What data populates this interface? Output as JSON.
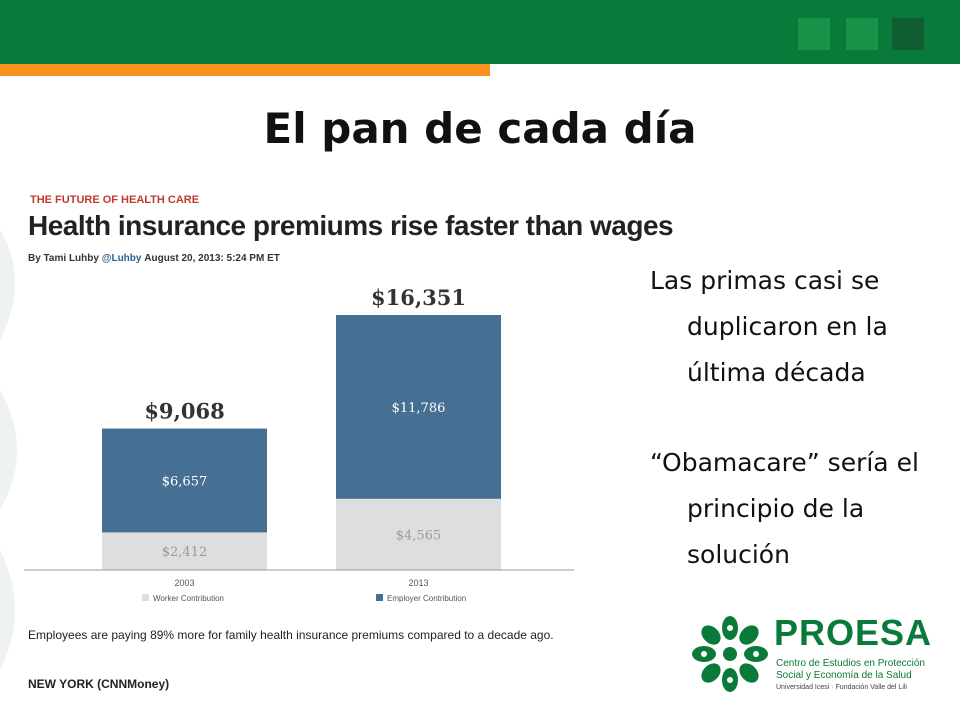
{
  "slide": {
    "title": "El pan de cada día",
    "colors": {
      "primary_green": "#0a7a3a",
      "accent_orange": "#f7931e"
    }
  },
  "article": {
    "kicker": "THE FUTURE OF HEALTH CARE",
    "headline": "Health insurance premiums rise faster than wages",
    "byline": {
      "by": "By Tami Luhby",
      "handle": "@Luhby",
      "date": "August 20, 2013: 5:24 PM ET"
    },
    "caption": "Employees are paying 89% more for family health insurance premiums compared to a decade ago.",
    "dateline": "NEW YORK (CNNMoney)"
  },
  "chart_data": {
    "type": "bar",
    "stacked": true,
    "categories": [
      "2003",
      "2013"
    ],
    "totals": [
      "$9,068",
      "$16,351"
    ],
    "series": [
      {
        "name": "Worker Contribution",
        "values": [
          2412,
          4565
        ],
        "labels": [
          "$2,412",
          "$4,565"
        ],
        "color": "#dedede"
      },
      {
        "name": "Employer Contribution",
        "values": [
          6657,
          11786
        ],
        "labels": [
          "$6,657",
          "$11,786"
        ],
        "color": "#456f93"
      }
    ],
    "ylim": [
      0,
      16351
    ],
    "grid": false,
    "legend": "bottom"
  },
  "bullets": [
    "Las primas casi se duplicaron en la última década",
    "“Obamacare” sería el principio de la solución"
  ],
  "logo": {
    "name": "PROESA",
    "subtitle": "Centro de Estudios en Protección Social y Economía de la Salud",
    "orgs": "Universidad Icesi · Fundación Valle del Lili"
  }
}
